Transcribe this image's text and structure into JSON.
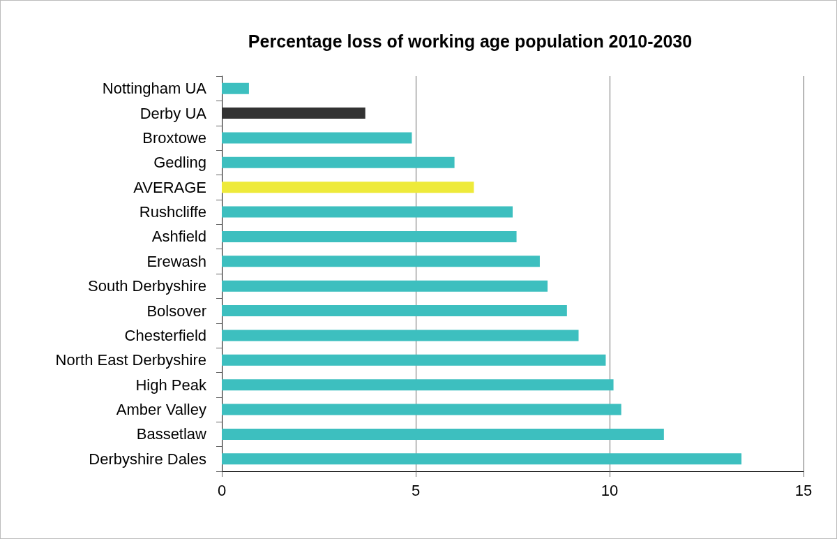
{
  "chart_data": {
    "type": "bar",
    "orientation": "horizontal",
    "title": "Percentage loss of working age population 2010-2030",
    "categories": [
      "Nottingham UA",
      "Derby UA",
      "Broxtowe",
      "Gedling",
      "AVERAGE",
      "Rushcliffe",
      "Ashfield",
      "Erewash",
      "South Derbyshire",
      "Bolsover",
      "Chesterfield",
      "North East Derbyshire",
      "High Peak",
      "Amber Valley",
      "Bassetlaw",
      "Derbyshire Dales"
    ],
    "values": [
      0.7,
      3.7,
      4.9,
      6.0,
      6.5,
      7.5,
      7.6,
      8.2,
      8.4,
      8.9,
      9.2,
      9.9,
      10.1,
      10.3,
      11.4,
      13.4
    ],
    "colors": [
      "#3dbfbf",
      "#333333",
      "#3dbfbf",
      "#3dbfbf",
      "#eeea3a",
      "#3dbfbf",
      "#3dbfbf",
      "#3dbfbf",
      "#3dbfbf",
      "#3dbfbf",
      "#3dbfbf",
      "#3dbfbf",
      "#3dbfbf",
      "#3dbfbf",
      "#3dbfbf",
      "#3dbfbf"
    ],
    "xlim": [
      0,
      15
    ],
    "xticks": [
      0,
      5,
      10,
      15
    ],
    "grid": "x"
  }
}
